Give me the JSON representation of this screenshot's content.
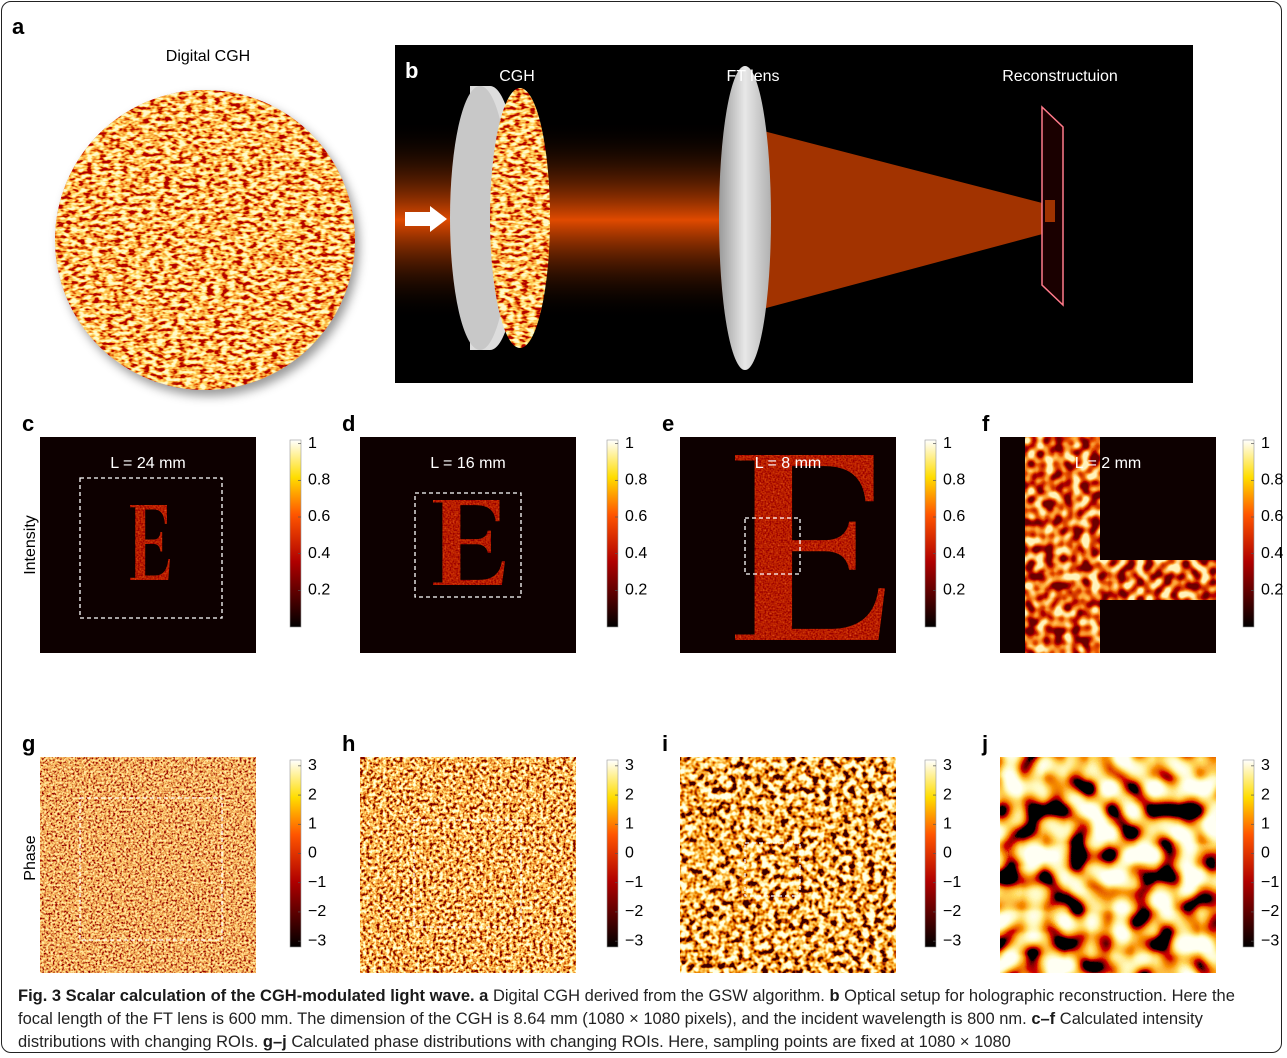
{
  "panels": {
    "a": {
      "label": "a",
      "title": "Digital CGH"
    },
    "b": {
      "label": "b",
      "labels": [
        "CGH",
        "FT lens",
        "Reconstructuion"
      ]
    }
  },
  "row_labels": [
    "Intensity",
    "Phase"
  ],
  "intensity": [
    {
      "label": "c",
      "text": "L = 24 mm"
    },
    {
      "label": "d",
      "text": "L = 16 mm"
    },
    {
      "label": "e",
      "text": "L = 8 mm"
    },
    {
      "label": "f",
      "text": "L = 2 mm"
    }
  ],
  "phase": [
    {
      "label": "g"
    },
    {
      "label": "h"
    },
    {
      "label": "i"
    },
    {
      "label": "j"
    }
  ],
  "colorbars": {
    "intensity": {
      "lim": [
        0,
        1.02
      ],
      "ticks": [
        1,
        0.8,
        0.6,
        0.4,
        0.2
      ]
    },
    "phase": {
      "lim": [
        -3.2,
        3.2
      ],
      "ticks": [
        3,
        2,
        1,
        0,
        {
          "value": -1,
          "label": "−1"
        },
        {
          "value": -2,
          "label": "−2"
        },
        {
          "value": -3,
          "label": "−3"
        }
      ]
    }
  },
  "caption": [
    {
      "bold": true,
      "text": "Fig. 3 Scalar calculation of the CGH-modulated light wave."
    },
    {
      "bold": true,
      "text": "a"
    },
    {
      "bold": false,
      "text": "Digital CGH derived from the GSW algorithm."
    },
    {
      "bold": true,
      "text": "b"
    },
    {
      "bold": false,
      "text": "Optical setup for holographic reconstruction. Here the focal length of the FT lens is 600 mm. The dimension of the CGH is 8.64 mm (1080 × 1080 pixels), and the incident wavelength is 800 nm."
    },
    {
      "bold": true,
      "text": "c–f"
    },
    {
      "bold": false,
      "text": "Calculated intensity distributions with changing ROIs."
    },
    {
      "bold": true,
      "text": "g–j"
    },
    {
      "bold": false,
      "text": "Calculated phase distributions with changing ROIs. Here, sampling points are fixed at 1080 × 1080"
    }
  ]
}
